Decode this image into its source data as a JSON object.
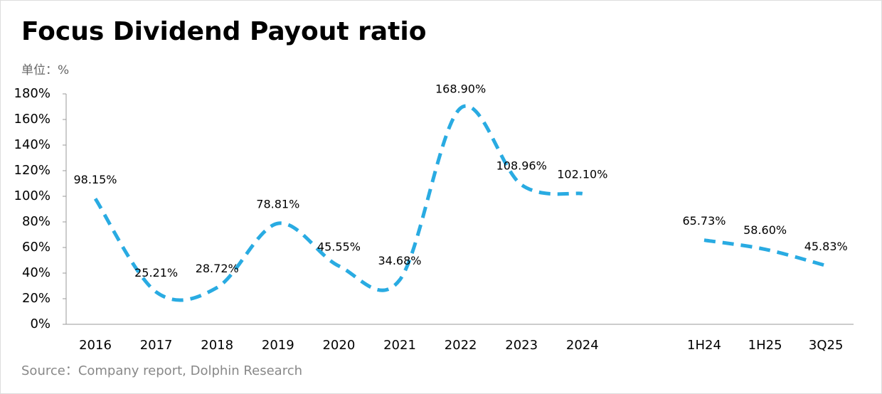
{
  "chart_data": {
    "type": "line",
    "title": "Focus Dividend Payout ratio",
    "subtitle": "单位：%",
    "source": "Source：Company report, Dolphin Research",
    "categories": [
      "2016",
      "2017",
      "2018",
      "2019",
      "2020",
      "2021",
      "2022",
      "2023",
      "2024",
      null,
      "1H24",
      "1H25",
      "3Q25"
    ],
    "values": [
      98.15,
      25.21,
      28.72,
      78.81,
      45.55,
      34.68,
      168.9,
      108.96,
      102.1,
      null,
      65.73,
      58.6,
      45.83
    ],
    "value_labels": [
      "98.15%",
      "25.21%",
      "28.72%",
      "78.81%",
      "45.55%",
      "34.68%",
      "168.90%",
      "108.96%",
      "102.10%",
      null,
      "65.73%",
      "58.60%",
      "45.83%"
    ],
    "color": "#29abe2",
    "dashed": true,
    "smooth": true,
    "ylim": [
      0,
      180
    ],
    "yticks": [
      {
        "value": 0,
        "label": "0%"
      },
      {
        "value": 20,
        "label": "20%"
      },
      {
        "value": 40,
        "label": "40%"
      },
      {
        "value": 60,
        "label": "60%"
      },
      {
        "value": 80,
        "label": "80%"
      },
      {
        "value": 100,
        "label": "100%"
      },
      {
        "value": 120,
        "label": "120%"
      },
      {
        "value": 140,
        "label": "140%"
      },
      {
        "value": 160,
        "label": "160%"
      },
      {
        "value": 180,
        "label": "180%"
      }
    ]
  }
}
